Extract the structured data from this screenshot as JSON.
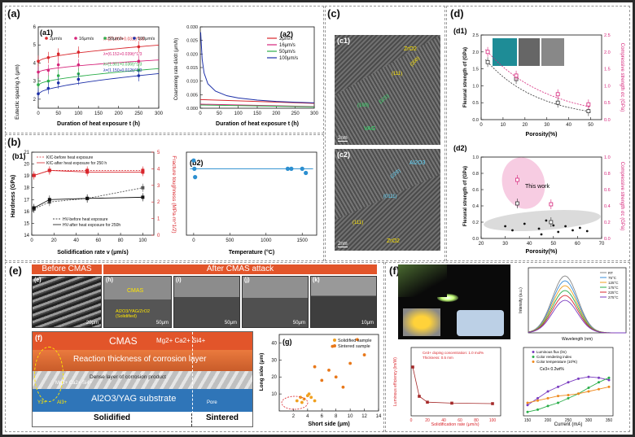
{
  "labels": {
    "a": "(a)",
    "a1": "(a1)",
    "a2": "(a2)",
    "b": "(b)",
    "b1": "(b1)",
    "b2": "(b2)",
    "c": "(c)",
    "c1": "(c1)",
    "c2": "(c2)",
    "d": "(d)",
    "d1": "(d1)",
    "d2": "(d2)",
    "e": "(e)",
    "f": "(f)",
    "g": "(g)",
    "e_f": "(f)"
  },
  "a1": {
    "ylabel": "Eutectic spacing λ (μm)",
    "xlabel": "Duration of heat exposure t (h)",
    "legend": [
      "2μm/s",
      "16μm/s",
      "50μm/s",
      "100μm/s"
    ],
    "fits": [
      "λ=(27.807+0.031t)^1/3",
      "λ=(6.152+0.039t)^1/3",
      "λ=(1.301+0.036t)^1/3",
      "λ=(1.150+0.012t)^1/3"
    ],
    "xticks": [
      "0",
      "50",
      "100",
      "150",
      "200",
      "250",
      "300"
    ],
    "yticks": [
      "2",
      "3",
      "4",
      "5",
      "6"
    ]
  },
  "a2": {
    "ylabel": "Coarsening rate dλ/dt (μm/h)",
    "xlabel": "Duration of heat exposure t (h)",
    "legend": [
      "2μm/s",
      "16μm/s",
      "50μm/s",
      "100μm/s"
    ],
    "xticks": [
      "0",
      "50",
      "100",
      "150",
      "200",
      "250",
      "300"
    ],
    "yticks": [
      "0.000",
      "0.005",
      "0.010",
      "0.015",
      "0.020",
      "0.025",
      "0.030"
    ]
  },
  "b1": {
    "ylabel_left": "Hardness (GPa)",
    "ylabel_right": "Fracture toughness (MPa·m^1/2)",
    "xlabel": "Solidification rate v (μm/s)",
    "legend_top": [
      "KIC-before heat exposure",
      "KIC-after heat exposure for 250 h"
    ],
    "legend_bottom": [
      "HV-before heat exposure",
      "HV-after heat exposure for 250h"
    ],
    "xticks": [
      "0",
      "20",
      "40",
      "60",
      "80",
      "100"
    ],
    "yticks_left": [
      "14",
      "15",
      "16",
      "17",
      "18",
      "19",
      "20",
      "21"
    ],
    "yticks_right": [
      "0",
      "1",
      "2",
      "3",
      "4",
      "5"
    ]
  },
  "b2": {
    "xlabel": "Temperature (°C)",
    "xticks": [
      "0",
      "500",
      "1000",
      "1500"
    ]
  },
  "c": {
    "c1_labels": [
      "ZrO2",
      "(200)",
      "(111)",
      "(100)",
      "(121)",
      "VAG"
    ],
    "c2_labels": [
      "Al2O3",
      "(220)",
      "(111)",
      "(0111)",
      "ZrO2"
    ],
    "scale": "2nm"
  },
  "d1": {
    "ylabel_left": "Flexural strength σf (GPa)",
    "ylabel_right": "Compressive strength σc (GPa)",
    "xlabel": "Porosity(%)",
    "xticks": [
      "0",
      "10",
      "20",
      "30",
      "40",
      "50"
    ],
    "yticks_left": [
      "0.0",
      "0.5",
      "1.0",
      "1.5",
      "2.0",
      "2.5"
    ],
    "yticks_right": [
      "0.0",
      "0.5",
      "1.0",
      "1.5",
      "2.0",
      "2.5"
    ]
  },
  "d2": {
    "ylabel_left": "Flexural strength σf (GPa)",
    "ylabel_right": "Compressive strength σc (GPa)",
    "xlabel": "Porosity(%)",
    "annotation": "This work",
    "xticks": [
      "20",
      "30",
      "40",
      "50",
      "60",
      "70"
    ],
    "yticks_left": [
      "0.0",
      "0.2",
      "0.4",
      "0.6",
      "0.8",
      "1.0"
    ],
    "yticks_right": [
      "0.0",
      "0.2",
      "0.4",
      "0.6",
      "0.8",
      "1.0"
    ]
  },
  "e": {
    "before": "Before CMAS attack",
    "after": "After CMAS attack",
    "sem_labels": [
      "(e)",
      "(h)",
      "(i)",
      "(j)",
      "(k)"
    ],
    "sem_cmas": "CMAS",
    "sem_phase": "Al2O3/YAG/ZrO2 (Solidified)",
    "scales": [
      "20μm",
      "50μm",
      "50μm",
      "50μm",
      "10μm"
    ],
    "schem_cmas": "CMAS",
    "schem_ions": "Mg2+ Ca2+ Si4+",
    "schem_reaction": "Reaction thickness of corrosion layer",
    "schem_dense": "Dense layer of corrosion product",
    "schem_substrate": "Al2O3/YAG substrate",
    "schem_ions2": "Mg2+ Ca2+ Si4+",
    "schem_y": "Y3+",
    "schem_al": "Al3+",
    "schem_pore": "Pore",
    "schem_solidified": "Solidified",
    "schem_sintered": "Sintered"
  },
  "g": {
    "ylabel": "Long side (μm)",
    "xlabel": "Short side (μm)",
    "legend": [
      "Solidified sample",
      "Sintered sample"
    ],
    "xticks": [
      "2",
      "4",
      "6",
      "8",
      "10",
      "12",
      "14"
    ],
    "yticks": [
      "10",
      "20",
      "30",
      "40"
    ]
  },
  "f": {
    "spectrum_xlabel": "Wavelength (nm)",
    "spectrum_ylabel": "Intensity (a.u.)",
    "spectrum_legend": [
      "RT",
      "75°C",
      "125°C",
      "175°C",
      "225°C",
      "275°C"
    ],
    "lum_ylabel": "Luminous efficiency (lm/W)",
    "lum_xlabel": "Solidification rate (μm/s)",
    "lum_note1": "Ce3+ doping concentration: 1.0 mol%",
    "lum_note2": "Thickness: 0.5 mm",
    "cur_xlabel": "Current (mA)",
    "cur_legend": [
      "Luminous flux (lm)",
      "Color rendering index",
      "Color temperature (10³K)"
    ],
    "cur_note": "Ce3+:0.2wt%"
  },
  "chart_data": [
    {
      "type": "scatter",
      "id": "a1",
      "series": [
        {
          "name": "2μm/s",
          "x": [
            0,
            25,
            50,
            100,
            250
          ],
          "y": [
            4.1,
            4.3,
            4.5,
            4.6,
            4.9
          ]
        },
        {
          "name": "16μm/s",
          "x": [
            0,
            25,
            50,
            100,
            250
          ],
          "y": [
            3.5,
            3.6,
            3.9,
            3.9,
            4.1
          ]
        },
        {
          "name": "50μm/s",
          "x": [
            0,
            25,
            50,
            100,
            250
          ],
          "y": [
            2.8,
            3.0,
            3.3,
            3.4,
            3.6
          ]
        },
        {
          "name": "100μm/s",
          "x": [
            0,
            25,
            50,
            100,
            250
          ],
          "y": [
            2.3,
            2.6,
            2.9,
            3.1,
            3.3
          ]
        }
      ],
      "xlim": [
        0,
        300
      ],
      "ylim": [
        1.5,
        6
      ]
    },
    {
      "type": "line",
      "id": "a2",
      "series": [
        {
          "name": "2μm/s",
          "x": [
            0,
            300
          ],
          "y": [
            0.0032,
            0.0018
          ]
        },
        {
          "name": "16μm/s",
          "x": [
            0,
            300
          ],
          "y": [
            0.0015,
            0.0006
          ]
        },
        {
          "name": "50μm/s",
          "x": [
            0,
            300
          ],
          "y": [
            0.0012,
            0.0005
          ]
        },
        {
          "name": "100μm/s",
          "x": [
            1,
            5,
            10,
            20,
            40,
            70,
            100,
            150,
            200,
            250,
            300
          ],
          "y": [
            0.028,
            0.018,
            0.013,
            0.009,
            0.0063,
            0.0046,
            0.0038,
            0.003,
            0.0025,
            0.0022,
            0.002
          ]
        }
      ],
      "xlim": [
        0,
        300
      ],
      "ylim": [
        0,
        0.03
      ]
    },
    {
      "type": "line",
      "id": "b1",
      "series": [
        {
          "name": "KIC-before heat exposure",
          "x": [
            2,
            16,
            50,
            100
          ],
          "y": [
            3.6,
            3.9,
            3.9,
            3.9
          ]
        },
        {
          "name": "KIC-after heat exposure for 250 h",
          "x": [
            2,
            16,
            50,
            100
          ],
          "y": [
            3.6,
            3.9,
            3.8,
            3.8
          ]
        },
        {
          "name": "HV-before heat exposure",
          "x": [
            2,
            16,
            50,
            100
          ],
          "y": [
            16.2,
            16.8,
            17.1,
            18.0
          ]
        },
        {
          "name": "HV-after heat exposure for 250h",
          "x": [
            2,
            16,
            50,
            100
          ],
          "y": [
            16.3,
            17.0,
            17.1,
            17.2
          ]
        }
      ],
      "xlim": [
        0,
        110
      ],
      "ylim": [
        14,
        21
      ]
    },
    {
      "type": "scatter",
      "id": "b2",
      "x": [
        0,
        10,
        20,
        1300,
        1350,
        1500,
        1550
      ],
      "y": [
        0.9,
        0.8,
        0.7,
        0.8,
        0.8,
        0.8,
        0.75
      ],
      "xlim": [
        -100,
        1700
      ]
    },
    {
      "type": "scatter",
      "id": "d1",
      "series": [
        {
          "name": "Flexural",
          "x": [
            3,
            16,
            35,
            49
          ],
          "y": [
            1.7,
            1.2,
            0.5,
            0.25
          ]
        },
        {
          "name": "Compressive",
          "x": [
            3,
            16,
            35,
            49
          ],
          "y": [
            2.0,
            1.3,
            0.75,
            0.45
          ]
        }
      ],
      "xlim": [
        0,
        55
      ],
      "ylim": [
        0,
        2.5
      ]
    },
    {
      "type": "scatter",
      "id": "d2",
      "series": [
        {
          "name": "This work flexural",
          "x": [
            35,
            49
          ],
          "y": [
            0.43,
            0.2
          ]
        },
        {
          "name": "This work compressive",
          "x": [
            35,
            49
          ],
          "y": [
            0.72,
            0.42
          ]
        }
      ],
      "xlim": [
        20,
        70
      ],
      "ylim": [
        0,
        1
      ]
    },
    {
      "type": "scatter",
      "id": "g",
      "series": [
        {
          "name": "Solidified sample",
          "x": [
            2.5,
            3,
            3.5,
            4,
            4.5,
            5,
            3.2,
            4.2
          ],
          "y": [
            6,
            8,
            7,
            9,
            8,
            6,
            5,
            10
          ]
        },
        {
          "name": "Sintered sample",
          "x": [
            5,
            6,
            7,
            7.5,
            8,
            9,
            10,
            11,
            12
          ],
          "y": [
            26,
            18,
            24,
            38,
            20,
            14,
            28,
            42,
            33
          ]
        }
      ],
      "xlim": [
        0,
        14
      ],
      "ylim": [
        0,
        45
      ]
    },
    {
      "type": "line",
      "id": "f_lum",
      "x": [
        2,
        10,
        20,
        50,
        100
      ],
      "y": [
        100,
        40,
        28,
        26,
        25
      ],
      "xlim": [
        0,
        110
      ],
      "ylim": [
        0,
        140
      ]
    },
    {
      "type": "line",
      "id": "f_cur",
      "series": [
        {
          "name": "Luminous flux (lm)",
          "x": [
            150,
            175,
            200,
            225,
            250,
            275,
            300,
            325,
            350
          ],
          "y": [
            0.2,
            0.35,
            0.5,
            0.6,
            0.7,
            0.78,
            0.82,
            0.8,
            0.75
          ]
        },
        {
          "name": "Color rendering index",
          "x": [
            150,
            175,
            200,
            225,
            250,
            275,
            300,
            325,
            350
          ],
          "y": [
            0.05,
            0.1,
            0.18,
            0.25,
            0.35,
            0.45,
            0.58,
            0.7,
            0.8
          ]
        },
        {
          "name": "Color temperature (10³K)",
          "x": [
            150,
            175,
            200,
            225,
            250,
            275,
            300,
            325,
            350
          ],
          "y": [
            0.25,
            0.3,
            0.35,
            0.4,
            0.42,
            0.45,
            0.5,
            0.55,
            0.6
          ]
        }
      ],
      "xlim": [
        140,
        360
      ],
      "ylim": [
        0,
        1
      ]
    }
  ],
  "colors": {
    "orange": "#e2552a",
    "red": "#d9262c",
    "magenta": "#d6247a",
    "green": "#2bae4a",
    "blue": "#1c2fa8",
    "pink": "#e8a4c8",
    "gray": "#cfcfcf",
    "substrate": "#2f75b8"
  }
}
